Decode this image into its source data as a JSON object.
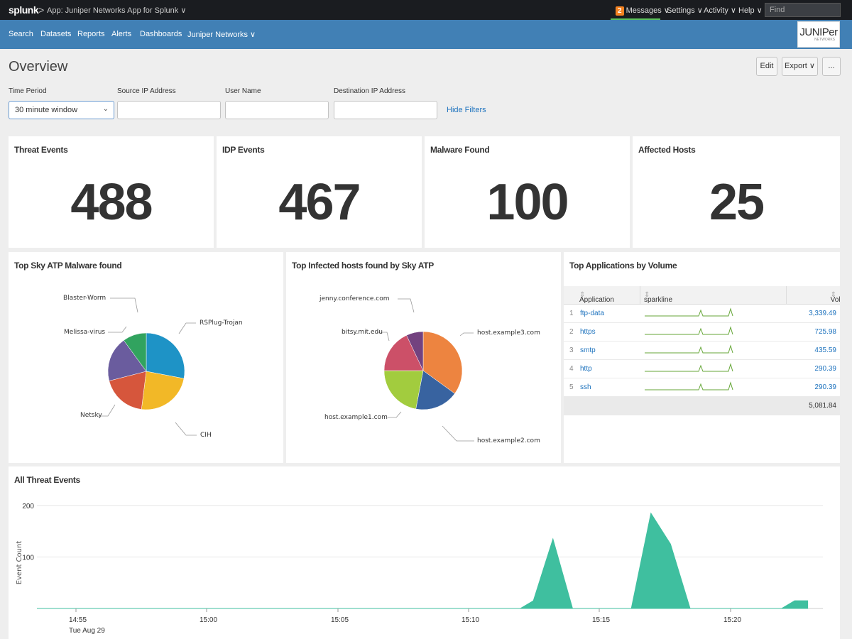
{
  "topbar": {
    "logo": "splunk",
    "logo_suffix": ">",
    "app_label": "App: Juniper Networks App for Splunk ∨",
    "messages_count": "2",
    "messages_label": "Messages ∨",
    "settings_label": "Settings ∨",
    "activity_label": "Activity ∨",
    "help_label": "Help ∨",
    "find_placeholder": "Find"
  },
  "nav": {
    "items": [
      "Search",
      "Datasets",
      "Reports",
      "Alerts",
      "Dashboards",
      "Juniper Networks ∨"
    ],
    "brand_logo_text": "JUNIPer",
    "brand_logo_sub": "NETWORKS"
  },
  "page": {
    "title": "Overview",
    "edit_label": "Edit",
    "export_label": "Export ∨",
    "more_label": "..."
  },
  "filters": {
    "time_period_label": "Time Period",
    "time_period_value": "30 minute window",
    "source_ip_label": "Source IP Address",
    "user_name_label": "User Name",
    "dest_ip_label": "Destination IP Address",
    "hide_filters_label": "Hide Filters"
  },
  "kpis": [
    {
      "title": "Threat Events",
      "value": "488"
    },
    {
      "title": "IDP Events",
      "value": "467"
    },
    {
      "title": "Malware Found",
      "value": "100"
    },
    {
      "title": "Affected Hosts",
      "value": "25"
    }
  ],
  "panels": {
    "malware_title": "Top Sky ATP Malware found",
    "hosts_title": "Top Infected hosts found by Sky ATP",
    "apps_title": "Top Applications by Volume",
    "threats_title": "All Threat Events"
  },
  "apps_table": {
    "columns": [
      "Application",
      "sparkline",
      "Volume"
    ],
    "rows": [
      {
        "idx": "1",
        "app": "ftp-data",
        "volume": "3,339.49"
      },
      {
        "idx": "2",
        "app": "https",
        "volume": "725.98"
      },
      {
        "idx": "3",
        "app": "smtp",
        "volume": "435.59"
      },
      {
        "idx": "4",
        "app": "http",
        "volume": "290.39"
      },
      {
        "idx": "5",
        "app": "ssh",
        "volume": "290.39"
      }
    ],
    "total": "5,081.84",
    "sparkline_color": "#65a637"
  },
  "chart_data": [
    {
      "type": "pie",
      "title": "Top Sky ATP Malware found",
      "categories": [
        "RSPlug-Trojan",
        "CIH",
        "Netsky",
        "Melissa-virus",
        "Blaster-Worm"
      ],
      "values": [
        28,
        24,
        19,
        19,
        10
      ],
      "colors": [
        "#1e93c6",
        "#f2b827",
        "#d6563c",
        "#6a5c9e",
        "#31a35f"
      ]
    },
    {
      "type": "pie",
      "title": "Top Infected hosts found by Sky ATP",
      "categories": [
        "host.example3.com",
        "host.example2.com",
        "host.example1.com",
        "bitsy.mit.edu",
        "jenny.conference.com"
      ],
      "values": [
        35,
        18,
        22,
        18,
        7
      ],
      "colors": [
        "#ed8440",
        "#3863a0",
        "#a2cc3e",
        "#cc5068",
        "#73427f"
      ]
    },
    {
      "type": "area",
      "title": "All Threat Events",
      "ylabel": "Event Count",
      "ylim": [
        0,
        200
      ],
      "yticks": [
        "100",
        "200"
      ],
      "xticks": [
        "14:55",
        "15:00",
        "15:05",
        "15:10",
        "15:15",
        "15:20"
      ],
      "xtick_sub": "Tue Aug 29",
      "x_minutes": [
        0,
        37,
        38,
        39.5,
        41,
        41.5,
        45.5,
        47,
        48.5,
        50,
        50.5,
        57,
        58,
        59
      ],
      "y": [
        0,
        0,
        15,
        135,
        0,
        0,
        0,
        185,
        125,
        0,
        0,
        0,
        15,
        15
      ],
      "color": "#3fbf9f"
    }
  ]
}
